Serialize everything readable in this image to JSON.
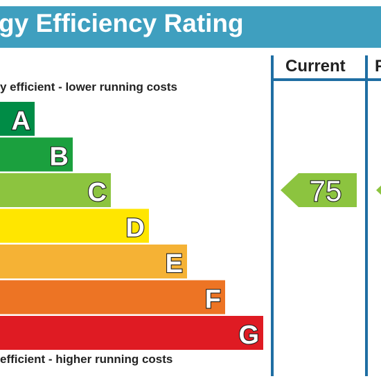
{
  "title": "gy Efficiency Rating",
  "columns": {
    "current": "Current",
    "potential": "P"
  },
  "notes": {
    "top": "y efficient - lower running costs",
    "bottom": " efficient - higher running costs"
  },
  "colors": {
    "header": "#3f9fbf",
    "frame": "#1f6ea3",
    "A": "#008c46",
    "B": "#1ba03e",
    "C": "#8cc43f",
    "D": "#ffe600",
    "E": "#f5b235",
    "F": "#ed7424",
    "G": "#df1b23"
  },
  "chart_data": {
    "type": "bar",
    "categories": [
      "A",
      "B",
      "C",
      "D",
      "E",
      "F",
      "G"
    ],
    "values": [
      1,
      2,
      3,
      4,
      5,
      6,
      7
    ],
    "current_rating": 75,
    "current_band": "C",
    "potential_band": "C"
  }
}
